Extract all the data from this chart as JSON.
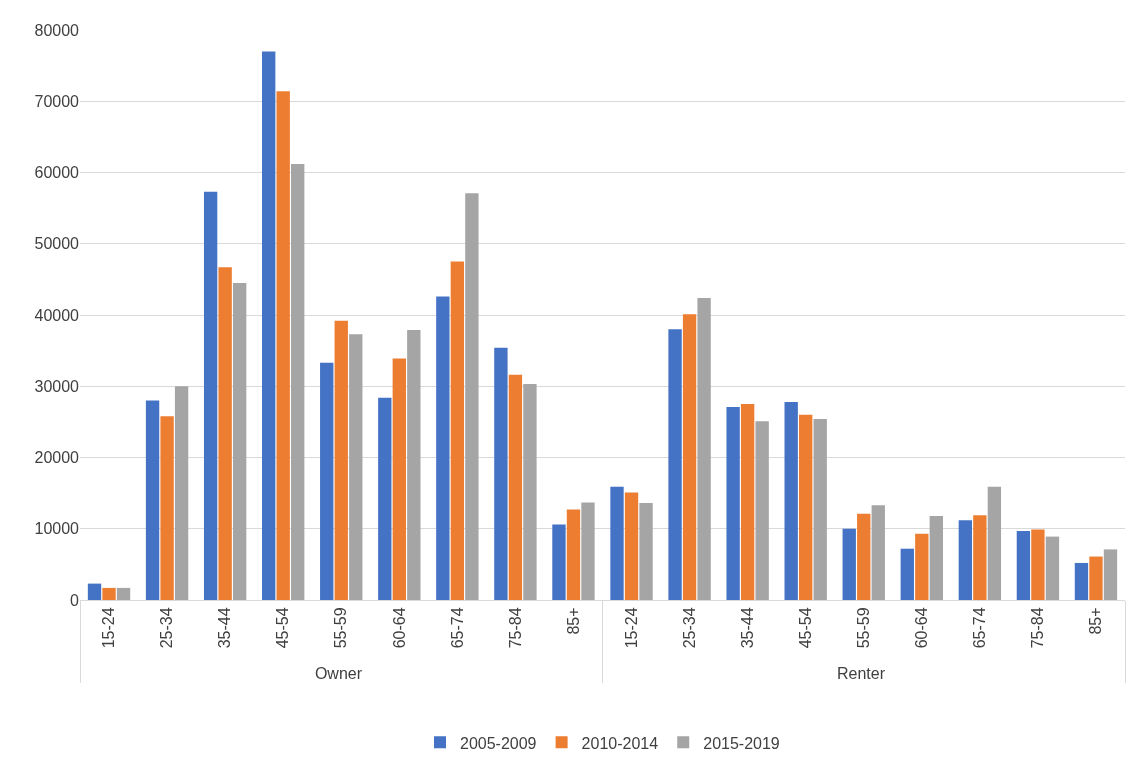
{
  "chart_data": {
    "type": "bar",
    "categories": [
      "15-24",
      "25-34",
      "35-44",
      "45-54",
      "55-59",
      "60-64",
      "65-74",
      "75-84",
      "85+",
      "15-24",
      "25-34",
      "35-44",
      "45-54",
      "55-59",
      "60-64",
      "65-74",
      "75-84",
      "85+"
    ],
    "annotations": [
      "Owner",
      "Renter"
    ],
    "series": [
      {
        "name": "2005-2009",
        "color": "#4472c4",
        "values": [
          2300,
          28000,
          57300,
          77000,
          33300,
          28400,
          42600,
          35400,
          10600,
          15900,
          38000,
          27100,
          27800,
          10000,
          7200,
          11200,
          9700,
          5200
        ]
      },
      {
        "name": "2010-2014",
        "color": "#ed7d31",
        "values": [
          1700,
          25800,
          46700,
          71400,
          39200,
          33900,
          47500,
          31600,
          12700,
          15100,
          40100,
          27500,
          26000,
          12100,
          9300,
          11900,
          9900,
          6100
        ]
      },
      {
        "name": "2015-2019",
        "color": "#a5a5a5",
        "values": [
          1700,
          30000,
          44500,
          61200,
          37300,
          37900,
          57100,
          30300,
          13700,
          13600,
          42400,
          25100,
          25400,
          13300,
          11800,
          15900,
          8900,
          7100
        ]
      }
    ],
    "ylim": [
      0,
      80000
    ],
    "yticks": [
      0,
      10000,
      20000,
      30000,
      40000,
      50000,
      60000,
      70000,
      80000
    ],
    "grid": "y",
    "legend": "bottom"
  }
}
